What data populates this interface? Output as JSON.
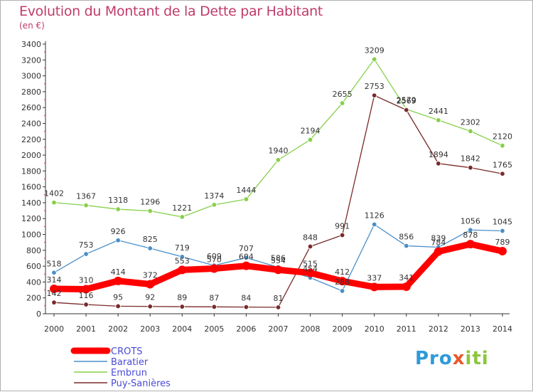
{
  "title": "Evolution du Montant de la Dette par Habitant",
  "subtitle": "(en €)",
  "logo": "Proxiti",
  "chart_data": {
    "type": "line",
    "x": [
      "2000",
      "2001",
      "2002",
      "2003",
      "2004",
      "2005",
      "2006",
      "2007",
      "2008",
      "2009",
      "2010",
      "2011",
      "2012",
      "2013",
      "2014"
    ],
    "ylim": [
      0,
      3400
    ],
    "yticks": [
      0,
      200,
      400,
      600,
      800,
      1000,
      1200,
      1400,
      1600,
      1800,
      2000,
      2200,
      2400,
      2600,
      2800,
      3000,
      3200,
      3400
    ],
    "grid": false,
    "legend": "bottom-left",
    "series": [
      {
        "name": "CROTS",
        "color": "#ff0000",
        "values": [
          314,
          310,
          414,
          372,
          553,
          570,
          604,
          554,
          515,
          412,
          337,
          341,
          784,
          878,
          789
        ]
      },
      {
        "name": "Baratier",
        "color": "#4a8fc8",
        "values": [
          518,
          753,
          926,
          825,
          719,
          609,
          707,
          586,
          454,
          288,
          1126,
          856,
          839,
          1056,
          1045
        ]
      },
      {
        "name": "Embrun",
        "color": "#86d04a",
        "values": [
          1402,
          1367,
          1318,
          1296,
          1221,
          1374,
          1444,
          1940,
          2194,
          2655,
          3209,
          2579,
          2441,
          2302,
          2120
        ]
      },
      {
        "name": "Puy-Sanières",
        "color": "#7a2a2a",
        "values": [
          142,
          116,
          95,
          92,
          89,
          87,
          84,
          81,
          848,
          991,
          2753,
          2569,
          1894,
          1842,
          1765
        ]
      }
    ]
  }
}
